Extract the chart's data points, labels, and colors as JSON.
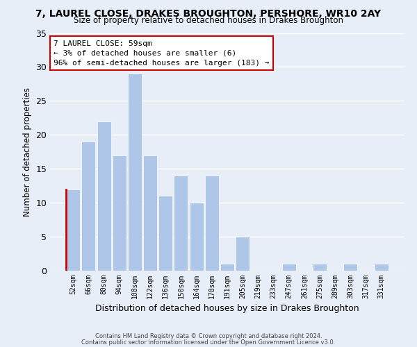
{
  "title": "7, LAUREL CLOSE, DRAKES BROUGHTON, PERSHORE, WR10 2AY",
  "subtitle": "Size of property relative to detached houses in Drakes Broughton",
  "xlabel": "Distribution of detached houses by size in Drakes Broughton",
  "ylabel": "Number of detached properties",
  "bin_labels": [
    "52sqm",
    "66sqm",
    "80sqm",
    "94sqm",
    "108sqm",
    "122sqm",
    "136sqm",
    "150sqm",
    "164sqm",
    "178sqm",
    "191sqm",
    "205sqm",
    "219sqm",
    "233sqm",
    "247sqm",
    "261sqm",
    "275sqm",
    "289sqm",
    "303sqm",
    "317sqm",
    "331sqm"
  ],
  "bar_heights": [
    12,
    19,
    22,
    17,
    29,
    17,
    11,
    14,
    10,
    14,
    1,
    5,
    0,
    0,
    1,
    0,
    1,
    0,
    1,
    0,
    1
  ],
  "bar_color": "#aec6e8",
  "highlight_left_edge_color": "#cc0000",
  "ylim": [
    0,
    35
  ],
  "yticks": [
    0,
    5,
    10,
    15,
    20,
    25,
    30,
    35
  ],
  "annotation_title": "7 LAUREL CLOSE: 59sqm",
  "annotation_line1": "← 3% of detached houses are smaller (6)",
  "annotation_line2": "96% of semi-detached houses are larger (183) →",
  "footer_line1": "Contains HM Land Registry data © Crown copyright and database right 2024.",
  "footer_line2": "Contains public sector information licensed under the Open Government Licence v3.0.",
  "background_color": "#e8eef7",
  "plot_bg_color": "#e8eef7"
}
